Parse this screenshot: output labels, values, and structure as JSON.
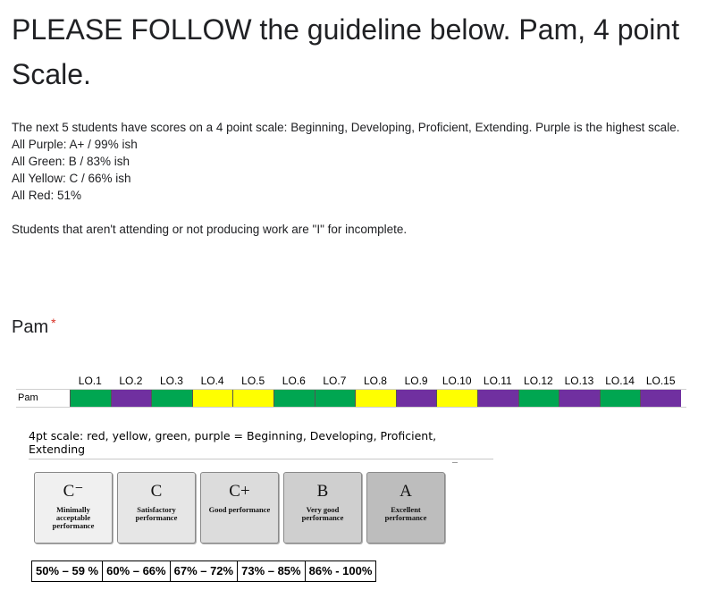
{
  "form": {
    "title": "PLEASE FOLLOW the guideline below. Pam, 4 point Scale.",
    "description_lines": [
      "The next 5 students have scores on a 4 point scale: Beginning, Developing, Proficient, Extending.  Purple is the highest scale.",
      "All Purple: A+ / 99% ish",
      "All Green: B / 83% ish",
      "All Yellow: C / 66% ish",
      "All Red: 51%",
      "",
      "Students that aren't attending or not producing work are \"I\" for incomplete."
    ],
    "question_title": "Pam",
    "required_mark": "*"
  },
  "rubric": {
    "student": "Pam",
    "columns": [
      "LO.1",
      "LO.2",
      "LO.3",
      "LO.4",
      "LO.5",
      "LO.6",
      "LO.7",
      "LO.8",
      "LO.9",
      "LO.10",
      "LO.11",
      "LO.12",
      "LO.13",
      "LO.14",
      "LO.15"
    ],
    "levels": [
      "green",
      "purple",
      "green",
      "yellow",
      "yellow",
      "green",
      "green",
      "yellow",
      "purple",
      "yellow",
      "purple",
      "green",
      "purple",
      "green",
      "purple"
    ],
    "colors": {
      "green": "#00a651",
      "purple": "#7030a0",
      "yellow": "#ffff00",
      "red": "#ff0000"
    }
  },
  "scale_note": "4pt scale: red, yellow, green, purple = Beginning, Developing, Proficient, Extending",
  "grade_boxes": [
    {
      "letter": "C⁻",
      "label": "Minimally acceptable performance",
      "bg": "#f0f0f0"
    },
    {
      "letter": "C",
      "label": "Satisfactory performance",
      "bg": "#e6e6e6"
    },
    {
      "letter": "C+",
      "label": "Good performance",
      "bg": "#dcdcdc"
    },
    {
      "letter": "B",
      "label": "Very good performance",
      "bg": "#cfcfcf"
    },
    {
      "letter": "A",
      "label": "Excellent performance",
      "bg": "#bdbdbd"
    }
  ],
  "ranges": [
    "50% – 59 %",
    "60% – 66%",
    "67% – 72%",
    "73% – 85%",
    "86% - 100%"
  ]
}
